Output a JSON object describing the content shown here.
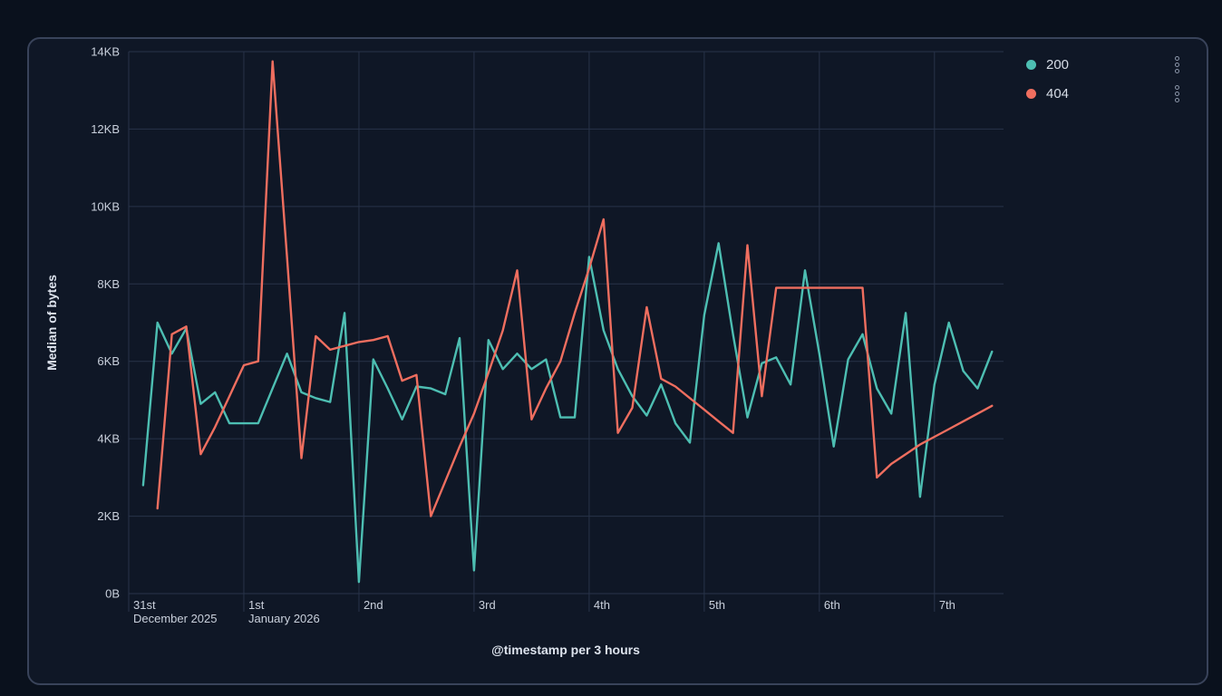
{
  "panel": {
    "type": "visualization-panel"
  },
  "chart_data": {
    "type": "line",
    "title": "",
    "ylabel": "Median of bytes",
    "xlabel": "@timestamp per 3 hours",
    "unit": "KB",
    "ylim": [
      0,
      14
    ],
    "grid": true,
    "legend_position": "right",
    "y_ticks": [
      {
        "label": "0B",
        "value": 0
      },
      {
        "label": "2KB",
        "value": 2
      },
      {
        "label": "4KB",
        "value": 4
      },
      {
        "label": "6KB",
        "value": 6
      },
      {
        "label": "8KB",
        "value": 8
      },
      {
        "label": "10KB",
        "value": 10
      },
      {
        "label": "12KB",
        "value": 12
      },
      {
        "label": "14KB",
        "value": 14
      }
    ],
    "x_day_ticks": [
      {
        "top": "31st",
        "bottom": "December 2025"
      },
      {
        "top": "1st",
        "bottom": "January 2026"
      },
      {
        "top": "2nd",
        "bottom": ""
      },
      {
        "top": "3rd",
        "bottom": ""
      },
      {
        "top": "4th",
        "bottom": ""
      },
      {
        "top": "5th",
        "bottom": ""
      },
      {
        "top": "6th",
        "bottom": ""
      },
      {
        "top": "7th",
        "bottom": ""
      }
    ],
    "bucket_hours": 3,
    "buckets_per_day": 8,
    "x_range_buckets": [
      0,
      60.8
    ],
    "series": [
      {
        "name": "200",
        "color": "#4dbeb2",
        "start_bucket": 1,
        "values": [
          2.8,
          7.0,
          6.2,
          6.85,
          4.9,
          5.2,
          4.4,
          4.4,
          4.4,
          5.3,
          6.2,
          5.2,
          5.05,
          4.95,
          7.25,
          0.3,
          6.05,
          5.3,
          4.5,
          5.35,
          5.3,
          5.15,
          6.6,
          0.6,
          6.55,
          5.8,
          6.2,
          5.8,
          6.05,
          4.55,
          4.55,
          8.7,
          6.8,
          5.8,
          5.1,
          4.6,
          5.4,
          4.4,
          3.9,
          7.2,
          9.05,
          6.7,
          4.55,
          5.95,
          6.1,
          5.4,
          8.35,
          6.2,
          3.8,
          6.05,
          6.7,
          5.3,
          4.65,
          7.25,
          2.5,
          5.4,
          7.0,
          5.75,
          5.3,
          6.25
        ]
      },
      {
        "name": "404",
        "color": "#ef6e5f",
        "start_bucket": 2,
        "values": [
          2.2,
          6.7,
          6.9,
          3.6,
          4.3,
          5.1,
          5.9,
          6.0,
          13.75,
          8.7,
          3.5,
          6.65,
          6.3,
          6.4,
          6.5,
          6.55,
          6.65,
          5.5,
          5.65,
          2.0,
          2.9,
          3.8,
          4.65,
          5.7,
          6.8,
          8.35,
          4.5,
          5.3,
          6.0,
          7.25,
          8.4,
          9.67,
          4.15,
          4.8,
          7.4,
          5.55,
          5.35,
          5.05,
          4.75,
          4.45,
          4.15,
          9.0,
          5.1,
          7.9,
          7.9,
          7.9,
          7.9,
          7.9,
          7.9,
          7.9,
          3.0,
          3.35,
          3.6,
          3.85,
          4.05,
          4.25,
          4.45,
          4.65,
          4.85
        ]
      }
    ]
  },
  "legend": {
    "menu_icon": "boxes-vertical"
  },
  "style": {
    "page_bg": "#0a111d",
    "panel_bg": "#0f1726",
    "panel_border": "#39435a",
    "gridline": "#283349",
    "tick_text": "#c9d0dc",
    "axis_title_text": "#dde3ed",
    "legend_text": "#d6dce6"
  }
}
